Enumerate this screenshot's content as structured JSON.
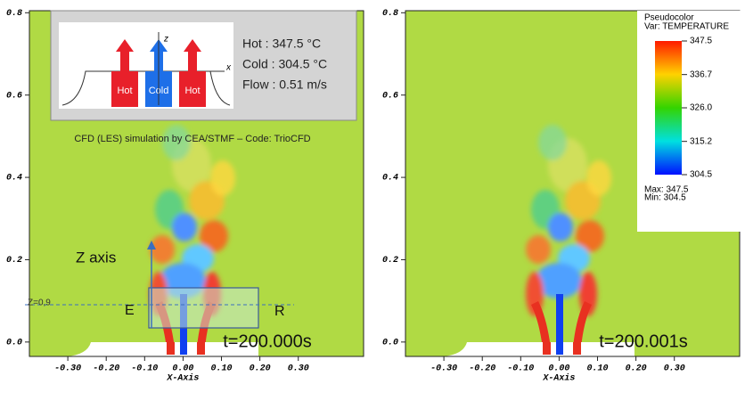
{
  "panels": [
    {
      "xlim": [
        -0.4,
        0.47
      ],
      "ylim": [
        -0.035,
        0.805
      ],
      "xticks": [
        {
          "value": -0.3,
          "label": "-0.30"
        },
        {
          "value": -0.2,
          "label": "-0.20"
        },
        {
          "value": -0.1,
          "label": "-0.10"
        },
        {
          "value": 0,
          "label": "0.00"
        },
        {
          "value": 0.1,
          "label": "0.10"
        },
        {
          "value": 0.2,
          "label": "0.20"
        },
        {
          "value": 0.3,
          "label": "0.30"
        }
      ],
      "yticks": [
        {
          "value": 0,
          "label": "0.0"
        },
        0.2,
        0.4,
        0.6,
        0.8
      ],
      "xlabel": "X-Axis",
      "time": "t=200.000s"
    },
    {
      "xlim": [
        -0.4,
        0.47
      ],
      "ylim": [
        -0.035,
        0.805
      ],
      "xticks": [
        {
          "value": -0.3,
          "label": "-0.30"
        },
        {
          "value": -0.2,
          "label": "-0.20"
        },
        {
          "value": -0.1,
          "label": "-0.10"
        },
        {
          "value": 0,
          "label": "0.00"
        },
        {
          "value": 0.1,
          "label": "0.10"
        },
        {
          "value": 0.2,
          "label": "0.20"
        },
        {
          "value": 0.3,
          "label": "0.30"
        }
      ],
      "yticks": [
        {
          "value": 0,
          "label": "0.0"
        },
        0.2,
        0.4,
        0.6,
        0.8
      ],
      "xlabel": "X-Axis",
      "time": "t=200.001s"
    }
  ],
  "inset": {
    "jets": [
      "Hot",
      "Cold",
      "Hot"
    ],
    "z": "z",
    "x": "x",
    "lines": [
      "Hot   : 347.5 °C",
      "Cold  : 304.5 °C",
      "Flow : 0.51 m/s"
    ]
  },
  "credit": "CFD (LES) simulation by CEA/STMF – Code: TrioCFD",
  "annotations": {
    "z_axis": "Z axis",
    "e": "E",
    "r": "R",
    "z_level": "Z=0,9"
  },
  "legend": {
    "title": "Pseudocolor",
    "var": "Var: TEMPERATURE",
    "ticks": [
      347.5,
      336.7,
      {
        "value": 326,
        "label": "326.0"
      },
      315.2,
      304.5
    ],
    "max": "Max:  347.5",
    "min": "Min:  304.5"
  }
}
